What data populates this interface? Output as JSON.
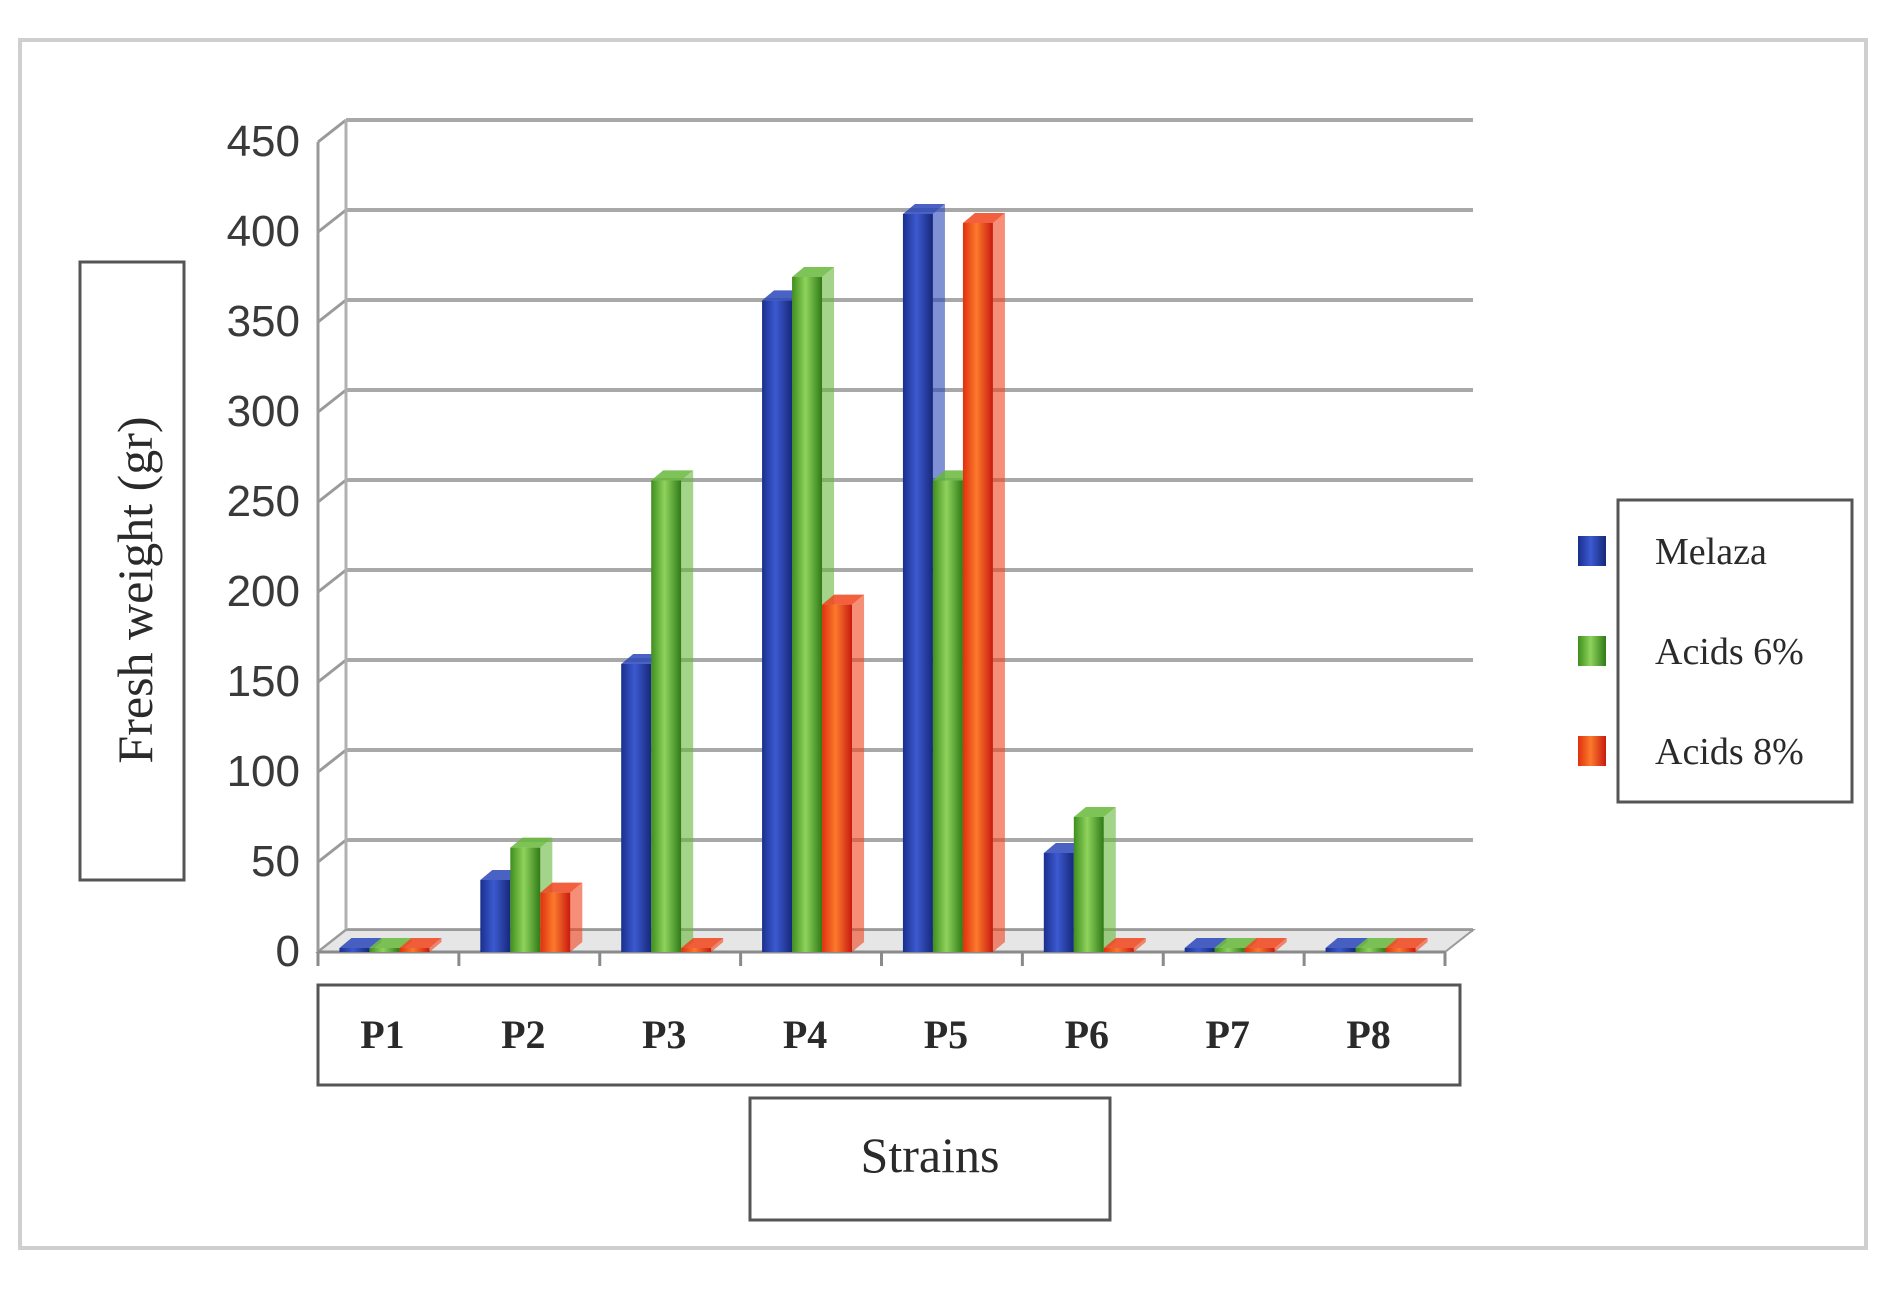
{
  "chart_data": {
    "type": "bar",
    "title": "",
    "xlabel": "Strains",
    "ylabel": "Fresh weight (gr)",
    "categories": [
      "P1",
      "P2",
      "P3",
      "P4",
      "P5",
      "P6",
      "P7",
      "P8"
    ],
    "series": [
      {
        "name": "Melaza",
        "values": [
          0,
          40,
          160,
          362,
          410,
          55,
          0,
          0
        ]
      },
      {
        "name": "Acids 6%",
        "values": [
          0,
          58,
          262,
          375,
          262,
          75,
          0,
          0
        ]
      },
      {
        "name": "Acids 8%",
        "values": [
          0,
          33,
          0,
          193,
          405,
          0,
          0,
          0
        ]
      }
    ],
    "ylim": [
      0,
      450
    ],
    "yticks": [
      0,
      50,
      100,
      150,
      200,
      250,
      300,
      350,
      400,
      450
    ],
    "grid": true,
    "legend_position": "right",
    "colors": {
      "Melaza": "#2a46b8",
      "Acids 6%": "#66b83a",
      "Acids 8%": "#f0441c"
    }
  }
}
